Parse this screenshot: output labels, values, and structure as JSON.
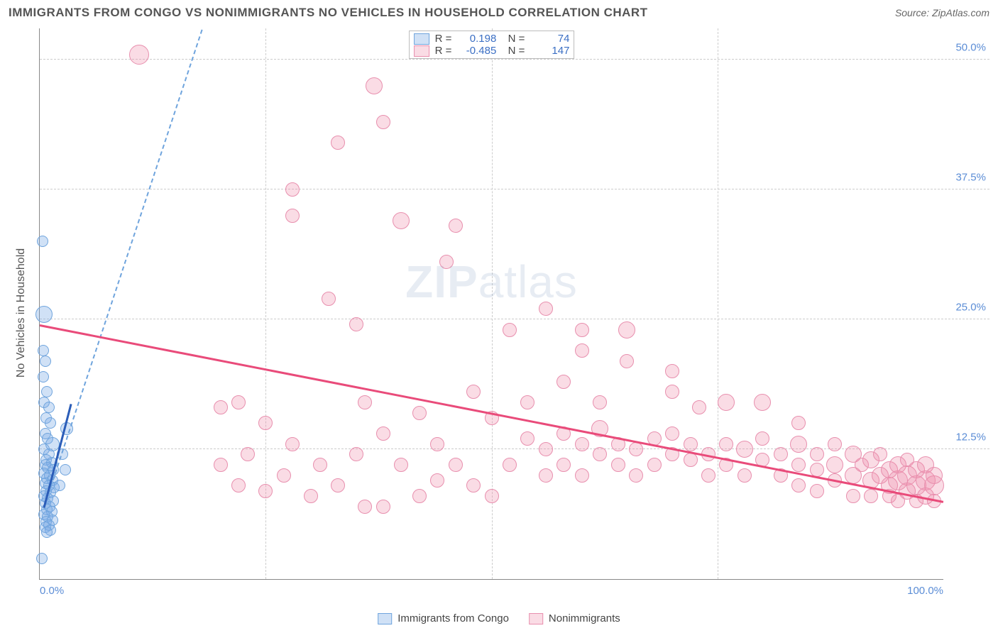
{
  "header": {
    "title": "IMMIGRANTS FROM CONGO VS NONIMMIGRANTS NO VEHICLES IN HOUSEHOLD CORRELATION CHART",
    "source_prefix": "Source: ",
    "source_link": "ZipAtlas.com"
  },
  "watermark": {
    "zip": "ZIP",
    "rest": "atlas"
  },
  "chart": {
    "type": "scatter-correlation",
    "y_axis_label": "No Vehicles in Household",
    "xlim": [
      0,
      100
    ],
    "ylim": [
      0,
      53
    ],
    "x_ticks": [
      {
        "v": 0,
        "label": "0.0%",
        "pos": "first"
      },
      {
        "v": 25,
        "label": ""
      },
      {
        "v": 50,
        "label": ""
      },
      {
        "v": 75,
        "label": ""
      },
      {
        "v": 100,
        "label": "100.0%",
        "pos": "last"
      }
    ],
    "y_ticks": [
      {
        "v": 12.5,
        "label": "12.5%"
      },
      {
        "v": 25.0,
        "label": "25.0%"
      },
      {
        "v": 37.5,
        "label": "37.5%"
      },
      {
        "v": 50.0,
        "label": "50.0%"
      }
    ],
    "grid_color": "#cccccc",
    "background_color": "#ffffff",
    "series": [
      {
        "key": "immigrants",
        "label": "Immigrants from Congo",
        "fill": "rgba(120,170,230,0.35)",
        "stroke": "#6fa4dd",
        "trend_solid_color": "#2b5db8",
        "trend_dash_color": "#6fa4dd",
        "R": "0.198",
        "N": "74",
        "trend": {
          "x1": 0.5,
          "y1": 7,
          "x2": 3.5,
          "y2": 17
        },
        "trend_ext": {
          "x1": 0.5,
          "y1": 7,
          "x2": 18,
          "y2": 53
        },
        "points": [
          {
            "x": 0.3,
            "y": 32.5,
            "r": 8
          },
          {
            "x": 0.2,
            "y": 2.0,
            "r": 8
          },
          {
            "x": 0.5,
            "y": 25.5,
            "r": 12
          },
          {
            "x": 0.4,
            "y": 22.0,
            "r": 8
          },
          {
            "x": 0.6,
            "y": 21.0,
            "r": 8
          },
          {
            "x": 0.4,
            "y": 19.5,
            "r": 8
          },
          {
            "x": 0.8,
            "y": 18.0,
            "r": 8
          },
          {
            "x": 0.5,
            "y": 17.0,
            "r": 8
          },
          {
            "x": 1.0,
            "y": 16.5,
            "r": 8
          },
          {
            "x": 0.7,
            "y": 15.5,
            "r": 8
          },
          {
            "x": 1.2,
            "y": 15.0,
            "r": 8
          },
          {
            "x": 0.6,
            "y": 14.0,
            "r": 8
          },
          {
            "x": 0.9,
            "y": 13.5,
            "r": 8
          },
          {
            "x": 1.4,
            "y": 13.0,
            "r": 10
          },
          {
            "x": 0.5,
            "y": 12.5,
            "r": 8
          },
          {
            "x": 1.0,
            "y": 12.0,
            "r": 8
          },
          {
            "x": 0.7,
            "y": 11.5,
            "r": 8
          },
          {
            "x": 1.3,
            "y": 11.2,
            "r": 8
          },
          {
            "x": 0.6,
            "y": 11.0,
            "r": 8
          },
          {
            "x": 0.9,
            "y": 10.7,
            "r": 8
          },
          {
            "x": 1.5,
            "y": 10.5,
            "r": 8
          },
          {
            "x": 0.5,
            "y": 10.2,
            "r": 8
          },
          {
            "x": 1.1,
            "y": 10.0,
            "r": 8
          },
          {
            "x": 0.8,
            "y": 9.7,
            "r": 8
          },
          {
            "x": 1.4,
            "y": 9.5,
            "r": 8
          },
          {
            "x": 0.6,
            "y": 9.2,
            "r": 8
          },
          {
            "x": 1.0,
            "y": 9.0,
            "r": 8
          },
          {
            "x": 1.6,
            "y": 8.8,
            "r": 8
          },
          {
            "x": 0.7,
            "y": 8.5,
            "r": 8
          },
          {
            "x": 1.2,
            "y": 8.3,
            "r": 8
          },
          {
            "x": 0.5,
            "y": 8.0,
            "r": 8
          },
          {
            "x": 0.9,
            "y": 7.8,
            "r": 8
          },
          {
            "x": 1.5,
            "y": 7.5,
            "r": 8
          },
          {
            "x": 0.6,
            "y": 7.3,
            "r": 8
          },
          {
            "x": 1.1,
            "y": 7.0,
            "r": 8
          },
          {
            "x": 0.8,
            "y": 6.7,
            "r": 8
          },
          {
            "x": 1.3,
            "y": 6.5,
            "r": 8
          },
          {
            "x": 0.5,
            "y": 6.2,
            "r": 8
          },
          {
            "x": 0.9,
            "y": 6.0,
            "r": 8
          },
          {
            "x": 1.4,
            "y": 5.7,
            "r": 8
          },
          {
            "x": 0.7,
            "y": 5.5,
            "r": 8
          },
          {
            "x": 1.0,
            "y": 5.2,
            "r": 8
          },
          {
            "x": 0.6,
            "y": 5.0,
            "r": 8
          },
          {
            "x": 1.2,
            "y": 4.7,
            "r": 8
          },
          {
            "x": 0.8,
            "y": 4.5,
            "r": 8
          },
          {
            "x": 3.0,
            "y": 14.5,
            "r": 9
          },
          {
            "x": 2.5,
            "y": 12.0,
            "r": 8
          },
          {
            "x": 2.8,
            "y": 10.5,
            "r": 8
          },
          {
            "x": 2.2,
            "y": 9.0,
            "r": 8
          }
        ]
      },
      {
        "key": "nonimmigrants",
        "label": "Nonimmigrants",
        "fill": "rgba(240,140,170,0.30)",
        "stroke": "#e88fae",
        "trend_solid_color": "#e94b7a",
        "trend_dash_color": "#e88fae",
        "R": "-0.485",
        "N": "147",
        "trend": {
          "x1": 0,
          "y1": 24.5,
          "x2": 100,
          "y2": 7.5
        },
        "points": [
          {
            "x": 11,
            "y": 50.5,
            "r": 14
          },
          {
            "x": 37,
            "y": 47.5,
            "r": 12
          },
          {
            "x": 38,
            "y": 44,
            "r": 10
          },
          {
            "x": 33,
            "y": 42,
            "r": 10
          },
          {
            "x": 28,
            "y": 37.5,
            "r": 10
          },
          {
            "x": 28,
            "y": 35,
            "r": 10
          },
          {
            "x": 40,
            "y": 34.5,
            "r": 12
          },
          {
            "x": 46,
            "y": 34,
            "r": 10
          },
          {
            "x": 45,
            "y": 30.5,
            "r": 10
          },
          {
            "x": 32,
            "y": 27,
            "r": 10
          },
          {
            "x": 35,
            "y": 24.5,
            "r": 10
          },
          {
            "x": 52,
            "y": 24,
            "r": 10
          },
          {
            "x": 56,
            "y": 26,
            "r": 10
          },
          {
            "x": 60,
            "y": 24,
            "r": 10
          },
          {
            "x": 60,
            "y": 22,
            "r": 10
          },
          {
            "x": 65,
            "y": 21,
            "r": 10
          },
          {
            "x": 65,
            "y": 24,
            "r": 12
          },
          {
            "x": 70,
            "y": 20,
            "r": 10
          },
          {
            "x": 70,
            "y": 18,
            "r": 10
          },
          {
            "x": 73,
            "y": 16.5,
            "r": 10
          },
          {
            "x": 62,
            "y": 17,
            "r": 10
          },
          {
            "x": 58,
            "y": 19,
            "r": 10
          },
          {
            "x": 54,
            "y": 17,
            "r": 10
          },
          {
            "x": 50,
            "y": 15.5,
            "r": 10
          },
          {
            "x": 48,
            "y": 18,
            "r": 10
          },
          {
            "x": 44,
            "y": 13,
            "r": 10
          },
          {
            "x": 42,
            "y": 16,
            "r": 10
          },
          {
            "x": 40,
            "y": 11,
            "r": 10
          },
          {
            "x": 38,
            "y": 14,
            "r": 10
          },
          {
            "x": 36,
            "y": 17,
            "r": 10
          },
          {
            "x": 35,
            "y": 12,
            "r": 10
          },
          {
            "x": 33,
            "y": 9,
            "r": 10
          },
          {
            "x": 31,
            "y": 11,
            "r": 10
          },
          {
            "x": 30,
            "y": 8,
            "r": 10
          },
          {
            "x": 28,
            "y": 13,
            "r": 10
          },
          {
            "x": 27,
            "y": 10,
            "r": 10
          },
          {
            "x": 25,
            "y": 15,
            "r": 10
          },
          {
            "x": 25,
            "y": 8.5,
            "r": 10
          },
          {
            "x": 23,
            "y": 12,
            "r": 10
          },
          {
            "x": 22,
            "y": 9,
            "r": 10
          },
          {
            "x": 22,
            "y": 17,
            "r": 10
          },
          {
            "x": 20,
            "y": 11,
            "r": 10
          },
          {
            "x": 20,
            "y": 16.5,
            "r": 10
          },
          {
            "x": 46,
            "y": 11,
            "r": 10
          },
          {
            "x": 48,
            "y": 9,
            "r": 10
          },
          {
            "x": 52,
            "y": 11,
            "r": 10
          },
          {
            "x": 54,
            "y": 13.5,
            "r": 10
          },
          {
            "x": 56,
            "y": 10,
            "r": 10
          },
          {
            "x": 56,
            "y": 12.5,
            "r": 10
          },
          {
            "x": 58,
            "y": 14,
            "r": 10
          },
          {
            "x": 58,
            "y": 11,
            "r": 10
          },
          {
            "x": 60,
            "y": 13,
            "r": 10
          },
          {
            "x": 60,
            "y": 10,
            "r": 10
          },
          {
            "x": 62,
            "y": 12,
            "r": 10
          },
          {
            "x": 62,
            "y": 14.5,
            "r": 12
          },
          {
            "x": 64,
            "y": 11,
            "r": 10
          },
          {
            "x": 64,
            "y": 13,
            "r": 10
          },
          {
            "x": 66,
            "y": 12.5,
            "r": 10
          },
          {
            "x": 66,
            "y": 10,
            "r": 10
          },
          {
            "x": 68,
            "y": 13.5,
            "r": 10
          },
          {
            "x": 68,
            "y": 11,
            "r": 10
          },
          {
            "x": 70,
            "y": 12,
            "r": 10
          },
          {
            "x": 70,
            "y": 14,
            "r": 10
          },
          {
            "x": 72,
            "y": 11.5,
            "r": 10
          },
          {
            "x": 72,
            "y": 13,
            "r": 10
          },
          {
            "x": 74,
            "y": 10,
            "r": 10
          },
          {
            "x": 74,
            "y": 12,
            "r": 10
          },
          {
            "x": 76,
            "y": 13,
            "r": 10
          },
          {
            "x": 76,
            "y": 11,
            "r": 10
          },
          {
            "x": 78,
            "y": 12.5,
            "r": 12
          },
          {
            "x": 78,
            "y": 10,
            "r": 10
          },
          {
            "x": 80,
            "y": 11.5,
            "r": 10
          },
          {
            "x": 80,
            "y": 13.5,
            "r": 10
          },
          {
            "x": 80,
            "y": 17,
            "r": 12
          },
          {
            "x": 82,
            "y": 12,
            "r": 10
          },
          {
            "x": 82,
            "y": 10,
            "r": 10
          },
          {
            "x": 84,
            "y": 11,
            "r": 10
          },
          {
            "x": 84,
            "y": 13,
            "r": 12
          },
          {
            "x": 84,
            "y": 9,
            "r": 10
          },
          {
            "x": 86,
            "y": 10.5,
            "r": 10
          },
          {
            "x": 86,
            "y": 12,
            "r": 10
          },
          {
            "x": 86,
            "y": 8.5,
            "r": 10
          },
          {
            "x": 88,
            "y": 11,
            "r": 12
          },
          {
            "x": 88,
            "y": 9.5,
            "r": 10
          },
          {
            "x": 88,
            "y": 13,
            "r": 10
          },
          {
            "x": 90,
            "y": 10,
            "r": 12
          },
          {
            "x": 90,
            "y": 12,
            "r": 12
          },
          {
            "x": 90,
            "y": 8,
            "r": 10
          },
          {
            "x": 91,
            "y": 11,
            "r": 10
          },
          {
            "x": 92,
            "y": 9.5,
            "r": 12
          },
          {
            "x": 92,
            "y": 11.5,
            "r": 12
          },
          {
            "x": 92,
            "y": 8,
            "r": 10
          },
          {
            "x": 93,
            "y": 10,
            "r": 12
          },
          {
            "x": 93,
            "y": 12,
            "r": 10
          },
          {
            "x": 94,
            "y": 9,
            "r": 12
          },
          {
            "x": 94,
            "y": 10.5,
            "r": 12
          },
          {
            "x": 94,
            "y": 8,
            "r": 10
          },
          {
            "x": 95,
            "y": 9.5,
            "r": 14
          },
          {
            "x": 95,
            "y": 11,
            "r": 12
          },
          {
            "x": 95,
            "y": 7.5,
            "r": 10
          },
          {
            "x": 96,
            "y": 10,
            "r": 14
          },
          {
            "x": 96,
            "y": 8.5,
            "r": 12
          },
          {
            "x": 96,
            "y": 11.5,
            "r": 10
          },
          {
            "x": 97,
            "y": 9,
            "r": 14
          },
          {
            "x": 97,
            "y": 10.5,
            "r": 12
          },
          {
            "x": 97,
            "y": 7.5,
            "r": 10
          },
          {
            "x": 98,
            "y": 9.5,
            "r": 14
          },
          {
            "x": 98,
            "y": 8,
            "r": 12
          },
          {
            "x": 98,
            "y": 11,
            "r": 12
          },
          {
            "x": 99,
            "y": 9,
            "r": 14
          },
          {
            "x": 99,
            "y": 10,
            "r": 12
          },
          {
            "x": 99,
            "y": 7.5,
            "r": 10
          },
          {
            "x": 36,
            "y": 7,
            "r": 10
          },
          {
            "x": 38,
            "y": 7,
            "r": 10
          },
          {
            "x": 42,
            "y": 8,
            "r": 10
          },
          {
            "x": 44,
            "y": 9.5,
            "r": 10
          },
          {
            "x": 50,
            "y": 8,
            "r": 10
          },
          {
            "x": 76,
            "y": 17,
            "r": 12
          },
          {
            "x": 84,
            "y": 15,
            "r": 10
          }
        ]
      }
    ]
  },
  "legend_bottom": {
    "items": [
      "immigrants",
      "nonimmigrants"
    ]
  }
}
